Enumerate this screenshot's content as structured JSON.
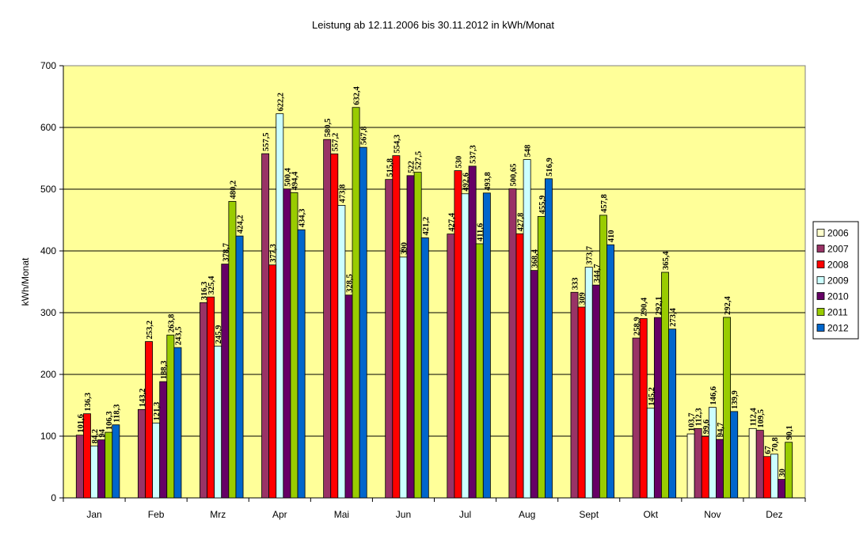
{
  "chart_data": {
    "type": "bar",
    "title": "Leistung ab 12.11.2006 bis 30.11.2012 in kWh/Monat",
    "xlabel": "",
    "ylabel": "kWh/Monat",
    "ylim": [
      0,
      700
    ],
    "yticks": [
      "0",
      "100",
      "200",
      "300",
      "400",
      "500",
      "600",
      "700"
    ],
    "grid": true,
    "legend_position": "right",
    "plot_background": "#ffff99",
    "categories": [
      "Jan",
      "Feb",
      "Mrz",
      "Apr",
      "Mai",
      "Jun",
      "Jul",
      "Aug",
      "Sept",
      "Okt",
      "Nov",
      "Dez"
    ],
    "series": [
      {
        "name": "2006",
        "color": "#ffffcc",
        "values": [
          null,
          null,
          null,
          null,
          null,
          null,
          null,
          null,
          null,
          null,
          103.7,
          112.4
        ],
        "labels": [
          "",
          "",
          "",
          "",
          "",
          "",
          "",
          "",
          "",
          "",
          "103,7",
          "112,4"
        ]
      },
      {
        "name": "2007",
        "color": "#993366",
        "values": [
          101.6,
          143.2,
          316.3,
          557.5,
          580.5,
          515.8,
          427.4,
          500.65,
          333,
          258.9,
          112.3,
          109.5
        ],
        "labels": [
          "101,6",
          "143,2",
          "316,3",
          "557,5",
          "580,5",
          "515,8",
          "427,4",
          "500,65",
          "333",
          "258,9",
          "112,3",
          "109,5"
        ]
      },
      {
        "name": "2008",
        "color": "#ff0000",
        "values": [
          136.3,
          253.2,
          325.4,
          377.3,
          557.2,
          554.3,
          530,
          427.8,
          309,
          290.4,
          99.6,
          67
        ],
        "labels": [
          "136,3",
          "253,2",
          "325,4",
          "377,3",
          "557,2",
          "554,3",
          "530",
          "427,8",
          "309",
          "290,4",
          "99,6",
          "67"
        ]
      },
      {
        "name": "2009",
        "color": "#ccffff",
        "values": [
          84.2,
          121.3,
          245.9,
          622.2,
          473.8,
          390,
          492.6,
          548,
          373.7,
          145.2,
          146.6,
          70.8
        ],
        "labels": [
          "84,2",
          "121,3",
          "245,9",
          "622,2",
          "473,8",
          "390",
          "492,6",
          "548",
          "373,7",
          "145,2",
          "146,6",
          "70,8"
        ]
      },
      {
        "name": "2010",
        "color": "#660066",
        "values": [
          94,
          188.3,
          378.7,
          500.4,
          328.5,
          522,
          537.3,
          368.4,
          344.7,
          292.1,
          94.7,
          30
        ],
        "labels": [
          "94",
          "188,3",
          "378,7",
          "500,4",
          "328,5",
          "522",
          "537,3",
          "368,4",
          "344,7",
          "292,1",
          "94,7",
          "30"
        ]
      },
      {
        "name": "2011",
        "color": "#99cc00",
        "values": [
          106.3,
          263.8,
          480.2,
          494.4,
          632.4,
          527.5,
          411.6,
          455.9,
          457.8,
          365.4,
          292.4,
          90.1
        ],
        "labels": [
          "106,3",
          "263,8",
          "480,2",
          "494,4",
          "632,4",
          "527,5",
          "411,6",
          "455,9",
          "457,8",
          "365,4",
          "292,4",
          "90,1"
        ]
      },
      {
        "name": "2012",
        "color": "#0066cc",
        "values": [
          118.3,
          243.5,
          424.2,
          434.3,
          567.8,
          421.2,
          493.8,
          516.9,
          410,
          273.4,
          139.9,
          null
        ],
        "labels": [
          "118,3",
          "243,5",
          "424,2",
          "434,3",
          "567,8",
          "421,2",
          "493,8",
          "516,9",
          "410",
          "273,4",
          "139,9",
          ""
        ]
      }
    ]
  }
}
